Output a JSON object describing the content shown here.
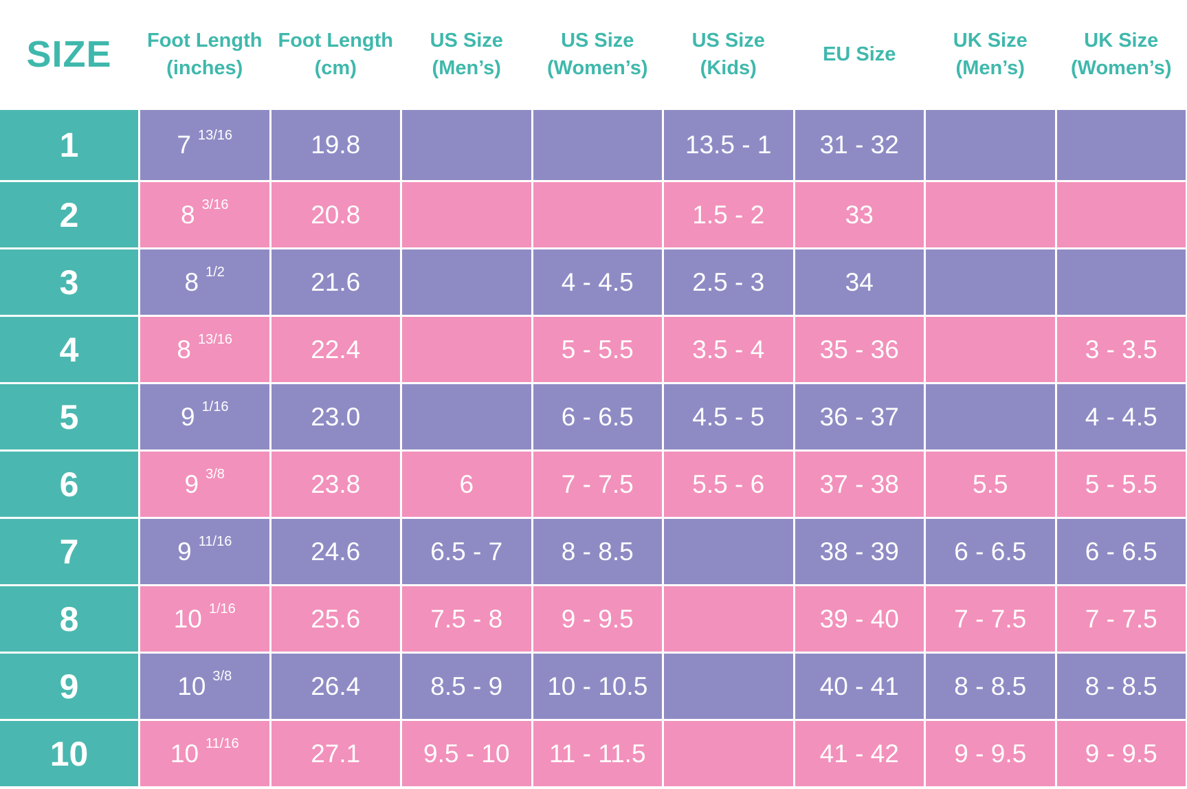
{
  "table": {
    "header": [
      "SIZE",
      [
        "Foot Length",
        "(inches)"
      ],
      [
        "Foot Length",
        "(cm)"
      ],
      [
        "US Size",
        "(Men’s)"
      ],
      [
        "US Size",
        "(Women’s)"
      ],
      [
        "US Size",
        "(Kids)"
      ],
      [
        "EU Size"
      ],
      [
        "UK Size",
        "(Men’s)"
      ],
      [
        "UK Size",
        "(Women’s)"
      ]
    ],
    "rows": [
      [
        "1",
        {
          "whole": "7",
          "fraction": "13/16"
        },
        "19.8",
        null,
        null,
        "13.5 - 1",
        "31 - 32",
        null,
        null
      ],
      [
        "2",
        {
          "whole": "8",
          "fraction": "3/16"
        },
        "20.8",
        null,
        null,
        "1.5 - 2",
        "33",
        null,
        null
      ],
      [
        "3",
        {
          "whole": "8",
          "fraction": "1/2"
        },
        "21.6",
        null,
        "4 - 4.5",
        "2.5 - 3",
        "34",
        null,
        null
      ],
      [
        "4",
        {
          "whole": "8",
          "fraction": "13/16"
        },
        "22.4",
        null,
        "5 - 5.5",
        "3.5 - 4",
        "35 - 36",
        null,
        "3 - 3.5"
      ],
      [
        "5",
        {
          "whole": "9",
          "fraction": "1/16"
        },
        "23.0",
        null,
        "6 - 6.5",
        "4.5 - 5",
        "36 - 37",
        null,
        "4 - 4.5"
      ],
      [
        "6",
        {
          "whole": "9",
          "fraction": "3/8"
        },
        "23.8",
        "6",
        "7 - 7.5",
        "5.5 - 6",
        "37 - 38",
        "5.5",
        "5 - 5.5"
      ],
      [
        "7",
        {
          "whole": "9",
          "fraction": "11/16"
        },
        "24.6",
        "6.5 - 7",
        "8 - 8.5",
        null,
        "38 - 39",
        "6 - 6.5",
        "6 - 6.5"
      ],
      [
        "8",
        {
          "whole": "10",
          "fraction": "1/16"
        },
        "25.6",
        "7.5 - 8",
        "9 - 9.5",
        null,
        "39 - 40",
        "7 - 7.5",
        "7 - 7.5"
      ],
      [
        "9",
        {
          "whole": "10",
          "fraction": "3/8"
        },
        "26.4",
        "8.5 - 9",
        "10 - 10.5",
        null,
        "40 - 41",
        "8 - 8.5",
        "8 - 8.5"
      ],
      [
        "10",
        {
          "whole": "10",
          "fraction": "11/16"
        },
        "27.1",
        "9.5 - 10",
        "11 - 11.5",
        null,
        "41 - 42",
        "9 - 9.5",
        "9 - 9.5"
      ]
    ]
  }
}
